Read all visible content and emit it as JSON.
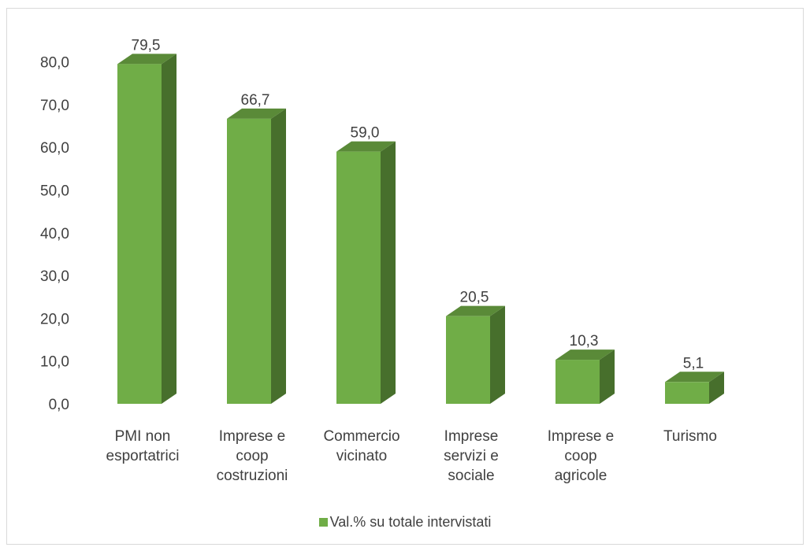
{
  "chart_data": {
    "type": "bar",
    "style": "3d-column",
    "categories": [
      [
        "PMI non",
        "esportatrici"
      ],
      [
        "Imprese e",
        "coop",
        "costruzioni"
      ],
      [
        "Commercio",
        "vicinato"
      ],
      [
        "Imprese",
        "servizi e",
        "sociale"
      ],
      [
        "Imprese e",
        "coop",
        "agricole"
      ],
      [
        "Turismo"
      ]
    ],
    "series": [
      {
        "name": "Val.% su totale intervistati",
        "values": [
          79.5,
          66.7,
          59.0,
          20.5,
          10.3,
          5.1
        ],
        "labels": [
          "79,5",
          "66,7",
          "59,0",
          "20,5",
          "10,3",
          "5,1"
        ]
      }
    ],
    "yticks": [
      "0,0",
      "10,0",
      "20,0",
      "30,0",
      "40,0",
      "50,0",
      "60,0",
      "70,0",
      "80,0"
    ],
    "ylim": [
      0,
      80
    ],
    "grid": false,
    "legend_position": "bottom",
    "colors": {
      "front": "#70ad47",
      "top": "#5a8a38",
      "side": "#476f2c",
      "text": "#404040"
    }
  }
}
